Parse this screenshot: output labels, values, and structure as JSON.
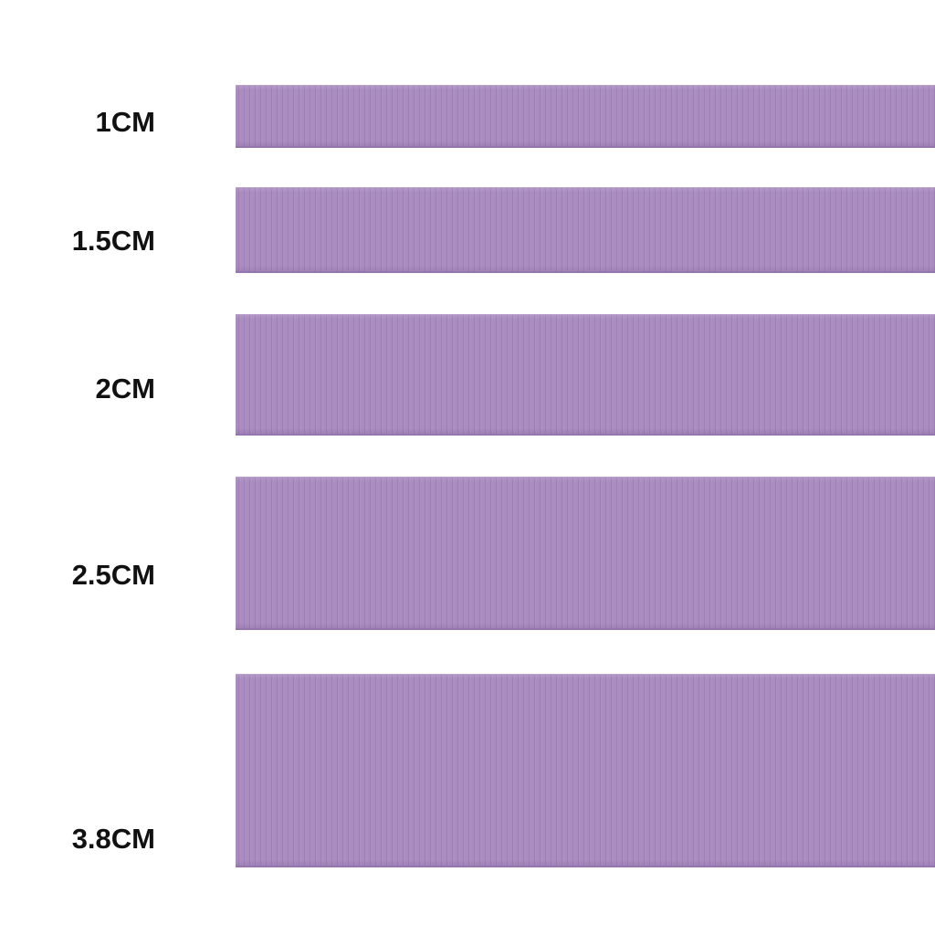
{
  "ribbon_color": "#a688bd",
  "sizes": [
    {
      "label": "1CM"
    },
    {
      "label": "1.5CM"
    },
    {
      "label": "2CM"
    },
    {
      "label": "2.5CM"
    },
    {
      "label": "3.8CM"
    }
  ]
}
